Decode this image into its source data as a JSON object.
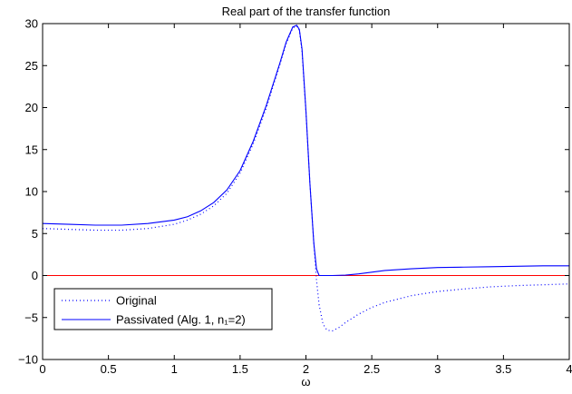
{
  "chart_data": {
    "type": "line",
    "title": "Real part of the transfer function",
    "xlabel": "ω",
    "ylabel": "",
    "xlim": [
      0,
      4
    ],
    "ylim": [
      -10,
      30
    ],
    "xticks": [
      "0",
      "0.5",
      "1",
      "1.5",
      "2",
      "2.5",
      "3",
      "3.5",
      "4"
    ],
    "yticks": [
      "−10",
      "−5",
      "0",
      "5",
      "10",
      "15",
      "20",
      "25",
      "30"
    ],
    "grid": false,
    "legend_position": "bottom-left",
    "series": [
      {
        "name": "Original",
        "style": "dotted",
        "color": "#0000ff",
        "x": [
          0,
          0.2,
          0.4,
          0.6,
          0.8,
          1.0,
          1.1,
          1.2,
          1.3,
          1.4,
          1.5,
          1.6,
          1.7,
          1.8,
          1.85,
          1.9,
          1.93,
          1.95,
          1.97,
          2.0,
          2.03,
          2.06,
          2.08,
          2.1,
          2.13,
          2.16,
          2.2,
          2.25,
          2.3,
          2.4,
          2.5,
          2.6,
          2.8,
          3.0,
          3.2,
          3.4,
          3.6,
          3.8,
          4.0
        ],
        "y": [
          5.6,
          5.5,
          5.4,
          5.4,
          5.6,
          6.1,
          6.6,
          7.3,
          8.3,
          9.8,
          12.2,
          15.7,
          20.0,
          25.0,
          27.6,
          29.5,
          29.7,
          29.2,
          26.8,
          19.5,
          11.0,
          3.8,
          -0.5,
          -3.5,
          -5.8,
          -6.5,
          -6.6,
          -6.2,
          -5.6,
          -4.6,
          -3.8,
          -3.2,
          -2.4,
          -1.9,
          -1.6,
          -1.35,
          -1.2,
          -1.1,
          -1.0
        ]
      },
      {
        "name": "Passivated (Alg. 1, n₁=2)",
        "style": "solid",
        "color": "#0000ff",
        "x": [
          0,
          0.2,
          0.4,
          0.6,
          0.8,
          1.0,
          1.1,
          1.2,
          1.3,
          1.4,
          1.5,
          1.6,
          1.7,
          1.8,
          1.85,
          1.9,
          1.93,
          1.95,
          1.97,
          2.0,
          2.03,
          2.06,
          2.08,
          2.1,
          2.15,
          2.2,
          2.3,
          2.4,
          2.5,
          2.6,
          2.8,
          3.0,
          3.2,
          3.4,
          3.6,
          3.8,
          4.0
        ],
        "y": [
          6.2,
          6.1,
          6.0,
          6.0,
          6.2,
          6.6,
          7.0,
          7.7,
          8.7,
          10.2,
          12.5,
          16.0,
          20.3,
          25.2,
          27.8,
          29.6,
          29.8,
          29.3,
          27.0,
          19.6,
          11.0,
          3.8,
          0.8,
          0.0,
          0.0,
          0.0,
          0.05,
          0.2,
          0.4,
          0.6,
          0.8,
          0.95,
          1.0,
          1.05,
          1.1,
          1.15,
          1.15
        ]
      }
    ],
    "reference_lines": [
      {
        "y": 0,
        "color": "#ff0000"
      }
    ]
  }
}
